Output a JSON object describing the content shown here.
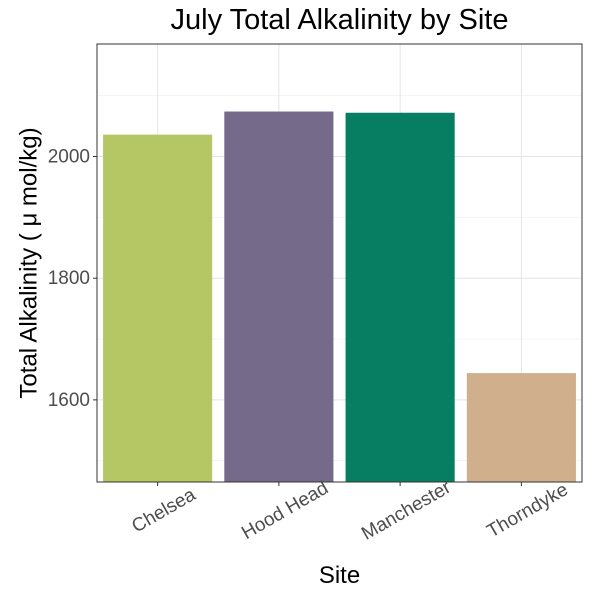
{
  "chart_data": {
    "type": "bar",
    "title": "July Total Alkalinity by Site",
    "xlabel": "Site",
    "ylabel": "Total Alkalinity ( μ mol/kg)",
    "categories": [
      "Chelsea",
      "Hood Head",
      "Manchester",
      "Thorndyke"
    ],
    "values": [
      2036,
      2074,
      2072,
      1644
    ],
    "colors": [
      "#b5c665",
      "#756a89",
      "#077d62",
      "#cfaf8c"
    ],
    "ylim": [
      1465,
      2185
    ],
    "yticks": [
      1600,
      1800,
      2000
    ],
    "grid": true,
    "legend": "none"
  }
}
